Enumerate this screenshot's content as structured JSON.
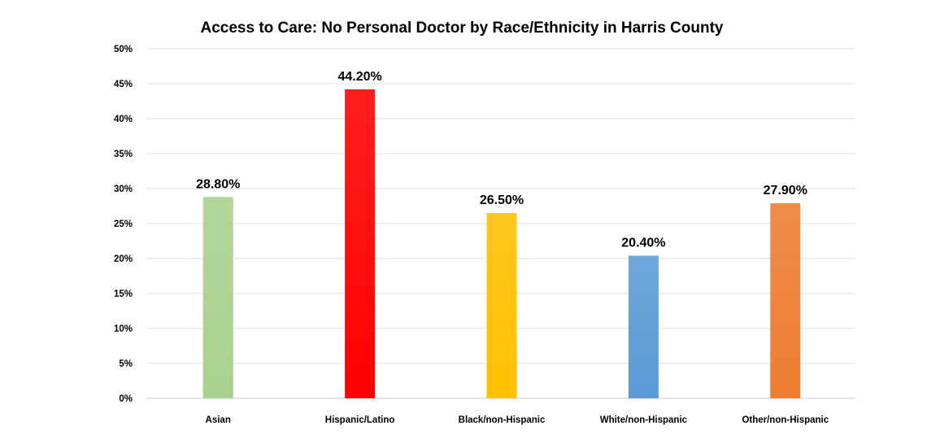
{
  "chart_data": {
    "type": "bar",
    "title": "Access to Care: No Personal Doctor by Race/Ethnicity in Harris County",
    "xlabel": "",
    "ylabel": "",
    "categories": [
      "Asian",
      "Hispanic/Latino",
      "Black/non-Hispanic",
      "White/non-Hispanic",
      "Other/non-Hispanic"
    ],
    "values": [
      28.8,
      44.2,
      26.5,
      20.4,
      27.9
    ],
    "data_labels": [
      "28.80%",
      "44.20%",
      "26.50%",
      "20.40%",
      "27.90%"
    ],
    "colors": [
      "#a9d18e",
      "#ff0000",
      "#ffc000",
      "#5b9bd5",
      "#ed7d31"
    ],
    "ylim": [
      0,
      50
    ],
    "yticks": [
      0,
      5,
      10,
      15,
      20,
      25,
      30,
      35,
      40,
      45,
      50
    ],
    "ytick_labels": [
      "0%",
      "5%",
      "10%",
      "15%",
      "20%",
      "25%",
      "30%",
      "35%",
      "40%",
      "45%",
      "50%"
    ],
    "grid": true,
    "legend": "none"
  }
}
